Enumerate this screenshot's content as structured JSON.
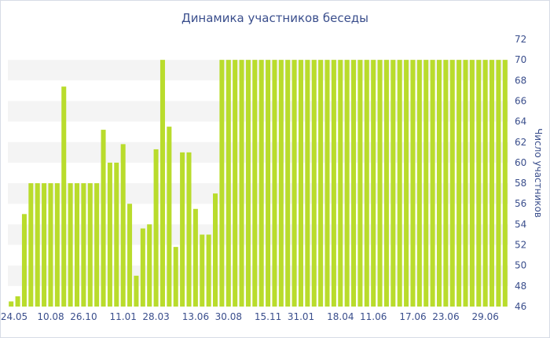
{
  "chart_data": {
    "type": "bar",
    "title": "Динамика участников беседы",
    "xlabel": "",
    "ylabel": "Число участников",
    "ylim": [
      46,
      72
    ],
    "yticks": [
      46,
      48,
      50,
      52,
      54,
      56,
      58,
      60,
      62,
      64,
      66,
      68,
      70,
      72
    ],
    "y_axis_side": "right",
    "grid": "alternating horizontal bands",
    "bar_color": "#b9dc2c",
    "band_color": "#f4f4f4",
    "text_color": "#3a4e8c",
    "xtick_labels": [
      {
        "index": 0,
        "label": "24.05"
      },
      {
        "index": 6,
        "label": "10.08"
      },
      {
        "index": 11,
        "label": "26.10"
      },
      {
        "index": 17,
        "label": "11.01"
      },
      {
        "index": 22,
        "label": "28.03"
      },
      {
        "index": 28,
        "label": "13.06"
      },
      {
        "index": 33,
        "label": "30.08"
      },
      {
        "index": 39,
        "label": "15.11"
      },
      {
        "index": 44,
        "label": "31.01"
      },
      {
        "index": 50,
        "label": "18.04"
      },
      {
        "index": 55,
        "label": "11.06"
      },
      {
        "index": 61,
        "label": "17.06"
      },
      {
        "index": 66,
        "label": "23.06"
      },
      {
        "index": 72,
        "label": "29.06"
      }
    ],
    "values": [
      46.5,
      47,
      55,
      58,
      58,
      58,
      58,
      58,
      67.4,
      58,
      58,
      58,
      58,
      58,
      63.2,
      60,
      60,
      61.8,
      56,
      49,
      53.6,
      54,
      61.3,
      70,
      63.5,
      51.8,
      61,
      61,
      55.5,
      53,
      53,
      57,
      70,
      70,
      70,
      70,
      70,
      70,
      70,
      70,
      70,
      70,
      70,
      70,
      70,
      70,
      70,
      70,
      70,
      70,
      70,
      70,
      70,
      70,
      70,
      70,
      70,
      70,
      70,
      70,
      70,
      70,
      70,
      70,
      70,
      70,
      70,
      70,
      70,
      70,
      70,
      70,
      70,
      70,
      70,
      70
    ]
  }
}
